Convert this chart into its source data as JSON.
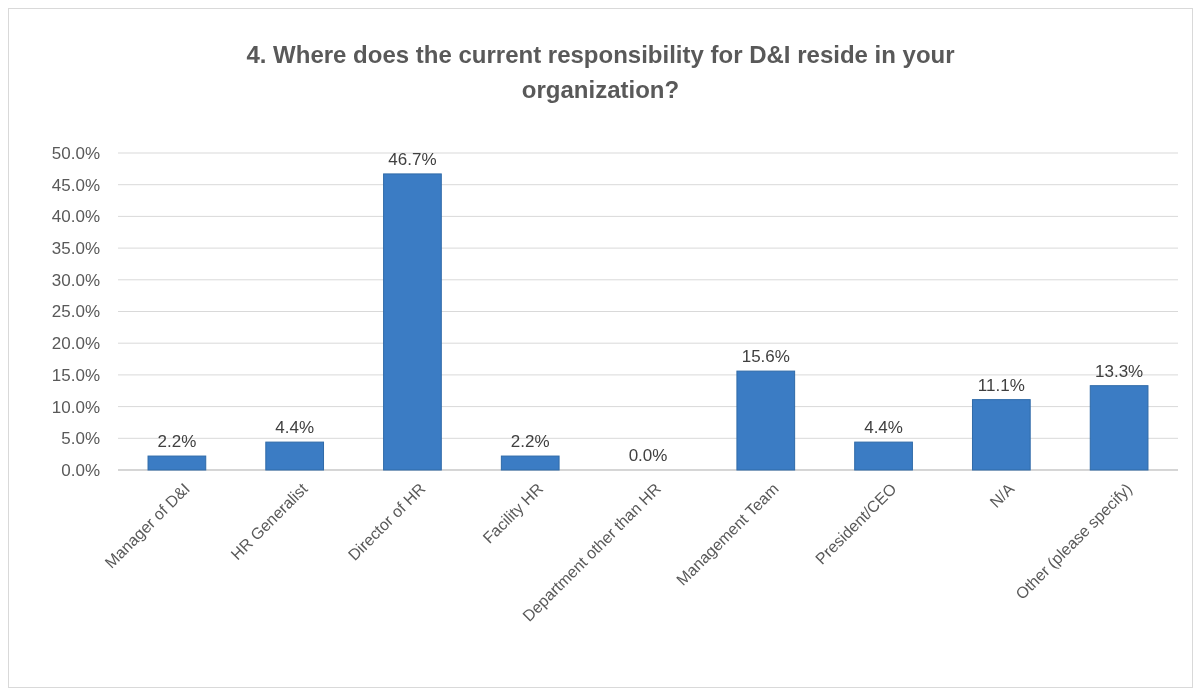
{
  "chart_data": {
    "type": "bar",
    "title": "4. Where does the current responsibility for D&I reside in your organization?",
    "categories": [
      "Manager of D&I",
      "HR Generalist",
      "Director of HR",
      "Facility HR",
      "Department other than HR",
      "Management Team",
      "President/CEO",
      "N/A",
      "Other (please specify)"
    ],
    "values": [
      2.2,
      4.4,
      46.7,
      2.2,
      0.0,
      15.6,
      4.4,
      11.1,
      13.3
    ],
    "value_labels": [
      "2.2%",
      "4.4%",
      "46.7%",
      "2.2%",
      "0.0%",
      "15.6%",
      "4.4%",
      "11.1%",
      "13.3%"
    ],
    "color": "#3b7cc4",
    "ylim": [
      0,
      50
    ],
    "yticks": [
      {
        "value": 0,
        "label": "0.0%"
      },
      {
        "value": 5,
        "label": "5.0%"
      },
      {
        "value": 10,
        "label": "10.0%"
      },
      {
        "value": 15,
        "label": "15.0%"
      },
      {
        "value": 20,
        "label": "20.0%"
      },
      {
        "value": 25,
        "label": "25.0%"
      },
      {
        "value": 30,
        "label": "30.0%"
      },
      {
        "value": 35,
        "label": "35.0%"
      },
      {
        "value": 40,
        "label": "40.0%"
      },
      {
        "value": 45,
        "label": "45.0%"
      },
      {
        "value": 50,
        "label": "50.0%"
      }
    ],
    "grid": "y"
  }
}
